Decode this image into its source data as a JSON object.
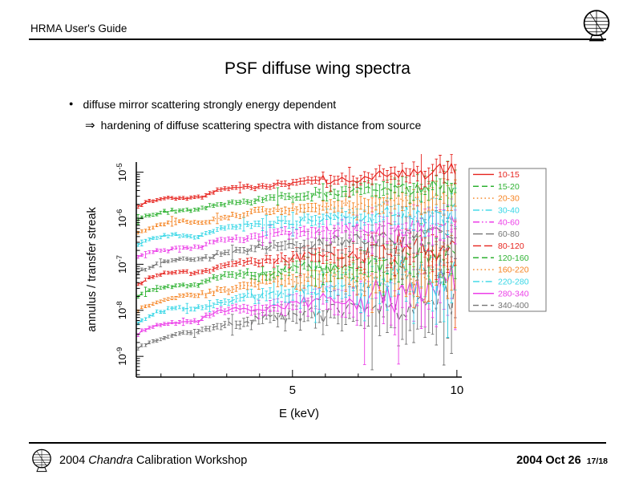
{
  "header": {
    "title": "HRMA User's Guide"
  },
  "slide": {
    "title": "PSF diffuse wing spectra",
    "bullet": "diffuse mirror scattering strongly energy dependent",
    "sub_bullet_arrow": "⇒",
    "sub_bullet": "hardening of diffuse scattering spectra with distance from source"
  },
  "footer": {
    "left_year": "2004",
    "left_name": "Chandra",
    "left_rest": "Calibration Workshop",
    "right_date": "2004 Oct 26",
    "page": "17/18"
  },
  "icons": {
    "top_logo": "chandra-emblem",
    "bottom_logo": "chandra-emblem"
  },
  "chart_data": {
    "type": "line",
    "title": "",
    "xlabel": "E (keV)",
    "ylabel": "annulus / transfer streak",
    "x_range": [
      0.25,
      10.15
    ],
    "y_log_range": [
      -9.45,
      -4.78
    ],
    "x_ticks": [
      5,
      10
    ],
    "x_minor_ticks": [
      1,
      2,
      3,
      4,
      6,
      7,
      8,
      9
    ],
    "y_tick_exponents": [
      -9,
      -8,
      -7,
      -6,
      -5
    ],
    "grid": false,
    "legend_position": "right",
    "x_sampling": {
      "min": 0.3,
      "max": 9.95,
      "count": 85
    },
    "noise_base": 0.025,
    "err_base": 0.03,
    "dip": {
      "center": 2.15,
      "width": 0.35,
      "depth": 0.09
    },
    "series": [
      {
        "label": "10-15",
        "color": "#e6231e",
        "style": "solid",
        "logy_start": -5.75,
        "logy_end": -4.98,
        "scatter_hi": 0.13
      },
      {
        "label": "15-20",
        "color": "#2eb232",
        "style": "dash",
        "logy_start": -6.03,
        "logy_end": -5.27,
        "scatter_hi": 0.16
      },
      {
        "label": "20-30",
        "color": "#f5821f",
        "style": "dot",
        "logy_start": -6.31,
        "logy_end": -5.54,
        "scatter_hi": 0.19
      },
      {
        "label": "30-40",
        "color": "#35d6e6",
        "style": "dashdot",
        "logy_start": -6.59,
        "logy_end": -5.8,
        "scatter_hi": 0.22
      },
      {
        "label": "40-60",
        "color": "#ec3ee8",
        "style": "dashdotdot",
        "logy_start": -6.87,
        "logy_end": -6.05,
        "scatter_hi": 0.25
      },
      {
        "label": "60-80",
        "color": "#737373",
        "style": "longdash",
        "logy_start": -7.15,
        "logy_end": -6.3,
        "scatter_hi": 0.29
      },
      {
        "label": "80-120",
        "color": "#e6231e",
        "style": "dash2",
        "logy_start": -7.43,
        "logy_end": -6.55,
        "scatter_hi": 0.33
      },
      {
        "label": "120-160",
        "color": "#2eb232",
        "style": "dash",
        "logy_start": -7.71,
        "logy_end": -6.79,
        "scatter_hi": 0.38
      },
      {
        "label": "160-220",
        "color": "#f5821f",
        "style": "dot",
        "logy_start": -7.99,
        "logy_end": -7.02,
        "scatter_hi": 0.43
      },
      {
        "label": "220-280",
        "color": "#35d6e6",
        "style": "dashdot",
        "logy_start": -8.27,
        "logy_end": -7.25,
        "scatter_hi": 0.49
      },
      {
        "label": "280-340",
        "color": "#ec3ee8",
        "style": "solid",
        "logy_start": -8.55,
        "logy_end": -7.48,
        "scatter_hi": 0.55
      },
      {
        "label": "340-400",
        "color": "#737373",
        "style": "dash",
        "logy_start": -8.85,
        "logy_end": -7.7,
        "scatter_hi": 0.62
      }
    ]
  }
}
